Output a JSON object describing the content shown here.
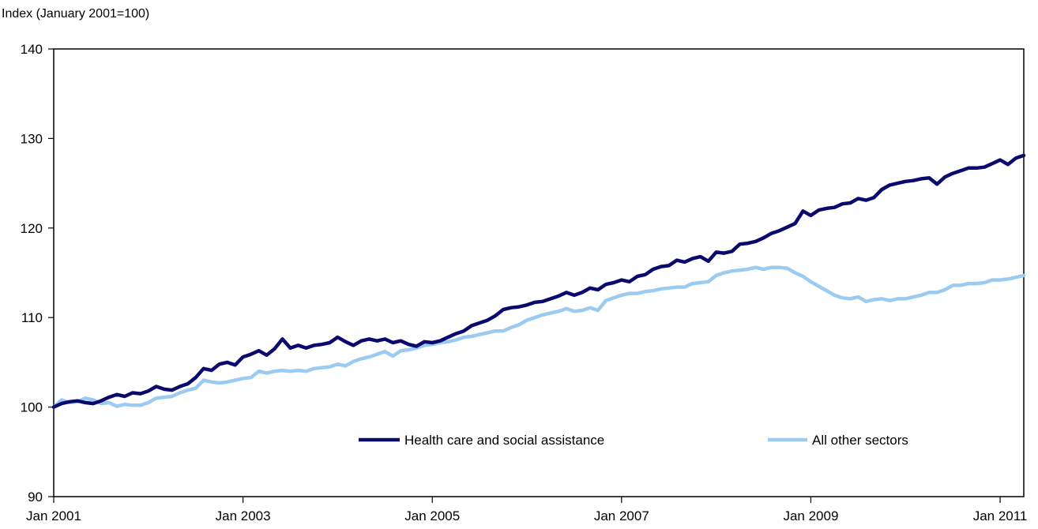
{
  "chart_data": {
    "type": "line",
    "title": "",
    "ylabel": "Index (January 2001=100)",
    "xlabel": "",
    "ylim": [
      90,
      140
    ],
    "yticks": [
      90,
      100,
      110,
      120,
      130,
      140
    ],
    "x_start": "Jan 2001",
    "x_end": "Apr 2011",
    "xtick_labels": [
      {
        "label": "Jan 2001",
        "month_index": 0
      },
      {
        "label": "Jan 2003",
        "month_index": 24
      },
      {
        "label": "Jan 2005",
        "month_index": 48
      },
      {
        "label": "Jan 2007",
        "month_index": 72
      },
      {
        "label": "Jan 2009",
        "month_index": 96
      },
      {
        "label": "Jan 2011",
        "month_index": 120
      }
    ],
    "grid": false,
    "legend_position": "inside-bottom-center",
    "colors": {
      "health": "#0a0a6e",
      "other": "#9ccbf2"
    },
    "series": [
      {
        "name": "Health care and social assistance",
        "values": [
          100.0,
          100.4,
          100.6,
          100.7,
          100.5,
          100.4,
          100.7,
          101.1,
          101.4,
          101.2,
          101.6,
          101.5,
          101.8,
          102.3,
          102.0,
          101.9,
          102.3,
          102.6,
          103.3,
          104.3,
          104.1,
          104.8,
          105.0,
          104.7,
          105.6,
          105.9,
          106.3,
          105.8,
          106.5,
          107.6,
          106.6,
          106.9,
          106.6,
          106.9,
          107.0,
          107.2,
          107.8,
          107.3,
          106.9,
          107.4,
          107.6,
          107.4,
          107.6,
          107.2,
          107.4,
          107.0,
          106.8,
          107.3,
          107.2,
          107.4,
          107.8,
          108.2,
          108.5,
          109.1,
          109.4,
          109.7,
          110.2,
          110.9,
          111.1,
          111.2,
          111.4,
          111.7,
          111.8,
          112.1,
          112.4,
          112.8,
          112.5,
          112.8,
          113.3,
          113.1,
          113.7,
          113.9,
          114.2,
          114.0,
          114.6,
          114.8,
          115.4,
          115.7,
          115.8,
          116.4,
          116.2,
          116.6,
          116.8,
          116.3,
          117.3,
          117.2,
          117.4,
          118.2,
          118.3,
          118.5,
          118.9,
          119.4,
          119.7,
          120.1,
          120.5,
          121.9,
          121.4,
          122.0,
          122.2,
          122.3,
          122.7,
          122.8,
          123.3,
          123.1,
          123.4,
          124.3,
          124.8,
          125.0,
          125.2,
          125.3,
          125.5,
          125.6,
          124.9,
          125.7,
          126.1,
          126.4,
          126.7,
          126.7,
          126.8,
          127.2,
          127.6,
          127.1,
          127.8,
          128.1
        ]
      },
      {
        "name": "All other sectors",
        "values": [
          100.0,
          100.8,
          100.5,
          100.6,
          101.0,
          100.8,
          100.4,
          100.5,
          100.1,
          100.3,
          100.2,
          100.2,
          100.5,
          101.0,
          101.1,
          101.2,
          101.6,
          101.9,
          102.1,
          103.0,
          102.8,
          102.7,
          102.8,
          103.0,
          103.2,
          103.3,
          104.0,
          103.8,
          104.0,
          104.1,
          104.0,
          104.1,
          104.0,
          104.3,
          104.4,
          104.5,
          104.8,
          104.6,
          105.1,
          105.4,
          105.6,
          105.9,
          106.2,
          105.7,
          106.3,
          106.4,
          106.6,
          106.9,
          107.0,
          107.2,
          107.3,
          107.5,
          107.8,
          107.9,
          108.1,
          108.3,
          108.5,
          108.5,
          108.9,
          109.2,
          109.7,
          110.0,
          110.3,
          110.5,
          110.7,
          111.0,
          110.7,
          110.8,
          111.1,
          110.8,
          111.9,
          112.2,
          112.5,
          112.7,
          112.7,
          112.9,
          113.0,
          113.2,
          113.3,
          113.4,
          113.4,
          113.8,
          113.9,
          114.0,
          114.7,
          115.0,
          115.2,
          115.3,
          115.4,
          115.6,
          115.4,
          115.6,
          115.6,
          115.5,
          115.0,
          114.6,
          114.0,
          113.5,
          113.0,
          112.5,
          112.2,
          112.1,
          112.3,
          111.8,
          112.0,
          112.1,
          111.9,
          112.1,
          112.1,
          112.3,
          112.5,
          112.8,
          112.8,
          113.1,
          113.6,
          113.6,
          113.8,
          113.8,
          113.9,
          114.2,
          114.2,
          114.3,
          114.5,
          114.7
        ]
      }
    ]
  }
}
